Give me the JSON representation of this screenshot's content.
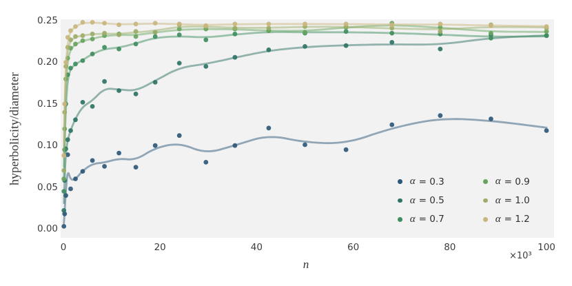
{
  "chart_data": {
    "type": "scatter",
    "title": "",
    "xlabel": "n",
    "ylabel": "hyperbolicity/diameter",
    "x_multiplier_label": "×10³",
    "x_unit": "thousands",
    "xlim_thousands": [
      0,
      100
    ],
    "ylim": [
      0,
      0.25
    ],
    "x_tick_labels": [
      "0",
      "20",
      "40",
      "60",
      "80",
      "100"
    ],
    "y_tick_labels": [
      "0.00",
      "0.05",
      "0.10",
      "0.15",
      "0.20",
      "0.25"
    ],
    "grid": false,
    "plot_background": "#f2f2f2",
    "legend_position": "lower right",
    "legend_columns": 2,
    "has_smoothed_fit_lines": true,
    "x_thousands": [
      0.1,
      0.25,
      0.5,
      0.9,
      1.5,
      2.5,
      4,
      6,
      8.5,
      11.5,
      15,
      19,
      24,
      29.5,
      35.5,
      42.5,
      50,
      58.5,
      68,
      78,
      88.5,
      100
    ],
    "series": [
      {
        "name": "alpha-0.3",
        "sym": "α",
        "val": "= 0.3",
        "alpha": 0.3,
        "color": "#2e5878",
        "values": [
          0.003,
          0.018,
          0.04,
          0.089,
          0.048,
          0.06,
          0.069,
          0.082,
          0.075,
          0.091,
          0.074,
          0.1,
          0.112,
          0.08,
          0.1,
          0.121,
          0.101,
          0.095,
          0.125,
          0.136,
          0.132,
          0.118
        ]
      },
      {
        "name": "alpha-0.5",
        "sym": "α",
        "val": "= 0.5",
        "alpha": 0.5,
        "color": "#2f7466",
        "values": [
          0.022,
          0.058,
          0.096,
          0.107,
          0.118,
          0.131,
          0.152,
          0.147,
          0.177,
          0.166,
          0.162,
          0.176,
          0.199,
          0.195,
          0.206,
          0.215,
          0.219,
          0.22,
          0.224,
          0.216,
          0.233,
          0.232
        ]
      },
      {
        "name": "alpha-0.7",
        "sym": "α",
        "val": "= 0.7",
        "alpha": 0.7,
        "color": "#3f8e5f",
        "values": [
          0.045,
          0.095,
          0.15,
          0.185,
          0.193,
          0.198,
          0.202,
          0.21,
          0.218,
          0.216,
          0.222,
          0.231,
          0.233,
          0.227,
          0.234,
          0.238,
          0.235,
          0.237,
          0.235,
          0.234,
          0.229,
          0.232
        ]
      },
      {
        "name": "alpha-0.9",
        "sym": "α",
        "val": "= 0.9",
        "alpha": 0.9,
        "color": "#67a55f",
        "values": [
          0.06,
          0.12,
          0.18,
          0.205,
          0.217,
          0.222,
          0.226,
          0.228,
          0.232,
          0.234,
          0.231,
          0.236,
          0.24,
          0.24,
          0.24,
          0.238,
          0.236,
          0.242,
          0.247,
          0.242,
          0.235,
          0.237
        ]
      },
      {
        "name": "alpha-1.0",
        "sym": "α",
        "val": "= 1.0",
        "alpha": 1.0,
        "color": "#9cad68",
        "values": [
          0.07,
          0.14,
          0.195,
          0.218,
          0.227,
          0.231,
          0.232,
          0.234,
          0.235,
          0.233,
          0.237,
          0.236,
          0.245,
          0.243,
          0.241,
          0.241,
          0.243,
          0.243,
          0.241,
          0.237,
          0.245,
          0.241
        ]
      },
      {
        "name": "alpha-1.2",
        "sym": "α",
        "val": "= 1.2",
        "alpha": 1.2,
        "color": "#c9b67e",
        "values": [
          0.088,
          0.15,
          0.2,
          0.23,
          0.238,
          0.243,
          0.248,
          0.248,
          0.247,
          0.245,
          0.246,
          0.247,
          0.246,
          0.244,
          0.246,
          0.246,
          0.246,
          0.246,
          0.245,
          0.246,
          0.244,
          0.243
        ]
      }
    ]
  }
}
